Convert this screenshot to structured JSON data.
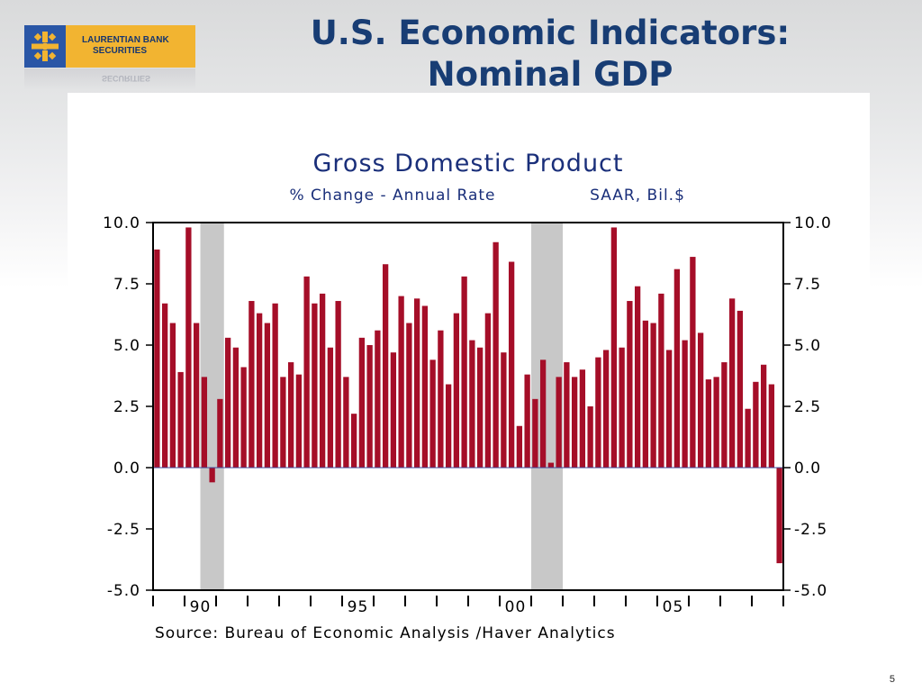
{
  "logo": {
    "line1": "LAURENTIAN BANK",
    "line2": "SECURITIES"
  },
  "slide": {
    "title_line1": "U.S. Economic Indicators:",
    "title_line2": "Nominal GDP",
    "page_number": "5"
  },
  "colors": {
    "bar": "#a50e28",
    "recession": "#c8c8c8",
    "title": "#183d74",
    "chart_title": "#1a2f7a",
    "zero_line": "#3d4a9c"
  },
  "chart_data": {
    "type": "bar",
    "title": "Gross Domestic Product",
    "subtitle_left": "% Change - Annual Rate",
    "subtitle_right": "SAAR, Bil.$",
    "source": "Source:  Bureau of Economic Analysis /Haver Analytics",
    "ylim": [
      -5,
      10
    ],
    "yticks": [
      "10.0",
      "7.5",
      "5.0",
      "2.5",
      "0.0",
      "-2.5",
      "-5.0"
    ],
    "ytick_values": [
      10,
      7.5,
      5,
      2.5,
      0,
      -2.5,
      -5
    ],
    "xtick_labels": [
      "90",
      "95",
      "00",
      "05"
    ],
    "x_start": "1989-Q1",
    "frequency": "quarterly",
    "recessions": [
      {
        "start": "1990-Q3",
        "end": "1991-Q1"
      },
      {
        "start": "2001-Q1",
        "end": "2001-Q4"
      }
    ],
    "values": [
      8.9,
      6.7,
      5.9,
      3.9,
      9.8,
      5.9,
      3.7,
      -0.6,
      2.8,
      5.3,
      4.9,
      4.1,
      6.8,
      6.3,
      5.9,
      6.7,
      3.7,
      4.3,
      3.8,
      7.8,
      6.7,
      7.1,
      4.9,
      6.8,
      3.7,
      2.2,
      5.3,
      5.0,
      5.6,
      8.3,
      4.7,
      7.0,
      5.9,
      6.9,
      6.6,
      4.4,
      5.6,
      3.4,
      6.3,
      7.8,
      5.2,
      4.9,
      6.3,
      9.2,
      4.7,
      8.4,
      1.7,
      3.8,
      2.8,
      4.4,
      0.2,
      3.7,
      4.3,
      3.7,
      4.0,
      2.5,
      4.5,
      4.8,
      9.8,
      4.9,
      6.8,
      7.4,
      6.0,
      5.9,
      7.1,
      4.8,
      8.1,
      5.2,
      8.6,
      5.5,
      3.6,
      3.7,
      4.3,
      6.9,
      6.4,
      2.4,
      3.5,
      4.2,
      3.4,
      -3.9
    ]
  }
}
